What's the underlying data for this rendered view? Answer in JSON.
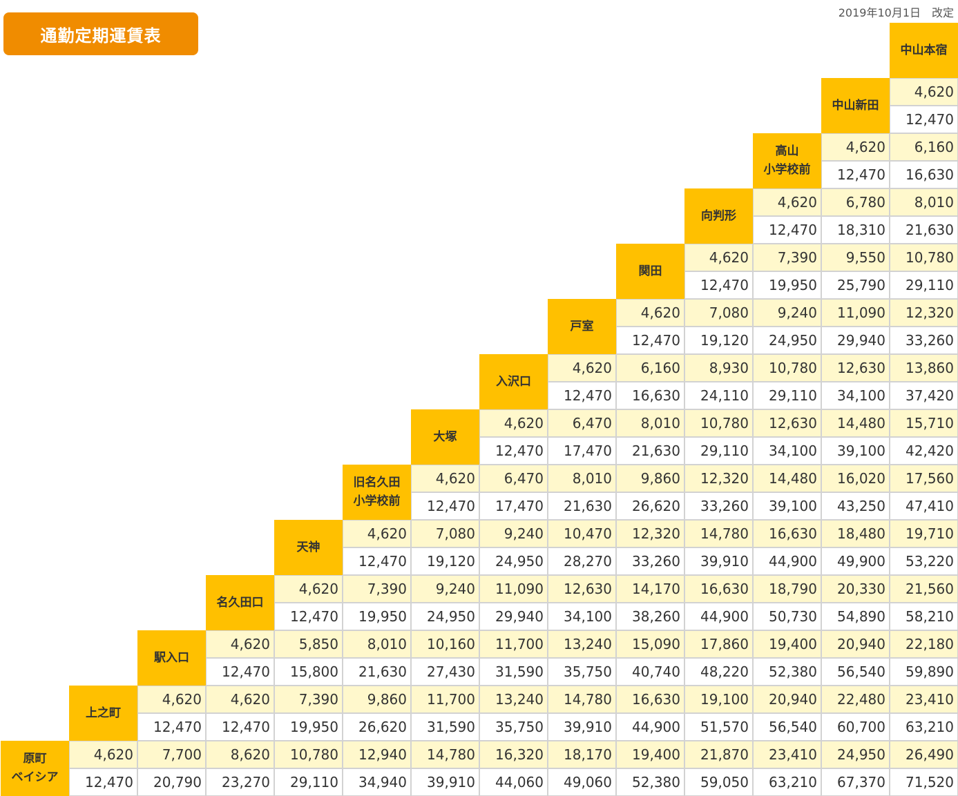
{
  "header": {
    "title": "通勤定期運賃表",
    "revised": "2019年10月1日　改定"
  },
  "stations": [
    "原町\nベイシア",
    "上之町",
    "駅入口",
    "名久田口",
    "天神",
    "旧名久田\n小学校前",
    "大塚",
    "入沢口",
    "戸室",
    "関田",
    "向判形",
    "高山\n小学校前",
    "中山新田",
    "中山本宿"
  ],
  "fares": [
    {
      "station": "原町\nベイシア",
      "m1": [
        "4,620",
        "7,700",
        "8,620",
        "10,780",
        "12,940",
        "14,780",
        "16,320",
        "18,170",
        "19,400",
        "21,870",
        "23,410",
        "24,950",
        "26,490"
      ],
      "m6": [
        "12,470",
        "20,790",
        "23,270",
        "29,110",
        "34,940",
        "39,910",
        "44,060",
        "49,060",
        "52,380",
        "59,050",
        "63,210",
        "67,370",
        "71,520"
      ]
    },
    {
      "station": "上之町",
      "m1": [
        "4,620",
        "4,620",
        "7,390",
        "9,860",
        "11,700",
        "13,240",
        "14,780",
        "16,630",
        "19,100",
        "20,940",
        "22,480",
        "23,410"
      ],
      "m6": [
        "12,470",
        "12,470",
        "19,950",
        "26,620",
        "31,590",
        "35,750",
        "39,910",
        "44,900",
        "51,570",
        "56,540",
        "60,700",
        "63,210"
      ]
    },
    {
      "station": "駅入口",
      "m1": [
        "4,620",
        "5,850",
        "8,010",
        "10,160",
        "11,700",
        "13,240",
        "15,090",
        "17,860",
        "19,400",
        "20,940",
        "22,180"
      ],
      "m6": [
        "12,470",
        "15,800",
        "21,630",
        "27,430",
        "31,590",
        "35,750",
        "40,740",
        "48,220",
        "52,380",
        "56,540",
        "59,890"
      ]
    },
    {
      "station": "名久田口",
      "m1": [
        "4,620",
        "7,390",
        "9,240",
        "11,090",
        "12,630",
        "14,170",
        "16,630",
        "18,790",
        "20,330",
        "21,560"
      ],
      "m6": [
        "12,470",
        "19,950",
        "24,950",
        "29,940",
        "34,100",
        "38,260",
        "44,900",
        "50,730",
        "54,890",
        "58,210"
      ]
    },
    {
      "station": "天神",
      "m1": [
        "4,620",
        "7,080",
        "9,240",
        "10,470",
        "12,320",
        "14,780",
        "16,630",
        "18,480",
        "19,710"
      ],
      "m6": [
        "12,470",
        "19,120",
        "24,950",
        "28,270",
        "33,260",
        "39,910",
        "44,900",
        "49,900",
        "53,220"
      ]
    },
    {
      "station": "旧名久田\n小学校前",
      "m1": [
        "4,620",
        "6,470",
        "8,010",
        "9,860",
        "12,320",
        "14,480",
        "16,020",
        "17,560"
      ],
      "m6": [
        "12,470",
        "17,470",
        "21,630",
        "26,620",
        "33,260",
        "39,100",
        "43,250",
        "47,410"
      ]
    },
    {
      "station": "大塚",
      "m1": [
        "4,620",
        "6,470",
        "8,010",
        "10,780",
        "12,630",
        "14,480",
        "15,710"
      ],
      "m6": [
        "12,470",
        "17,470",
        "21,630",
        "29,110",
        "34,100",
        "39,100",
        "42,420"
      ]
    },
    {
      "station": "入沢口",
      "m1": [
        "4,620",
        "6,160",
        "8,930",
        "10,780",
        "12,630",
        "13,860"
      ],
      "m6": [
        "12,470",
        "16,630",
        "24,110",
        "29,110",
        "34,100",
        "37,420"
      ]
    },
    {
      "station": "戸室",
      "m1": [
        "4,620",
        "7,080",
        "9,240",
        "11,090",
        "12,320"
      ],
      "m6": [
        "12,470",
        "19,120",
        "24,950",
        "29,940",
        "33,260"
      ]
    },
    {
      "station": "関田",
      "m1": [
        "4,620",
        "7,390",
        "9,550",
        "10,780"
      ],
      "m6": [
        "12,470",
        "19,950",
        "25,790",
        "29,110"
      ]
    },
    {
      "station": "向判形",
      "m1": [
        "4,620",
        "6,780",
        "8,010"
      ],
      "m6": [
        "12,470",
        "18,310",
        "21,630"
      ]
    },
    {
      "station": "高山\n小学校前",
      "m1": [
        "4,620",
        "6,160"
      ],
      "m6": [
        "12,470",
        "16,630"
      ]
    },
    {
      "station": "中山新田",
      "m1": [
        "4,620"
      ],
      "m6": [
        "12,470"
      ]
    },
    {
      "station": "中山本宿",
      "m1": [],
      "m6": []
    }
  ],
  "colors": {
    "title_bg": "#f08c00",
    "station_bg": "#ffc000",
    "one_month_row_bg": "#fff8cc",
    "six_month_row_bg": "#ffffff"
  }
}
